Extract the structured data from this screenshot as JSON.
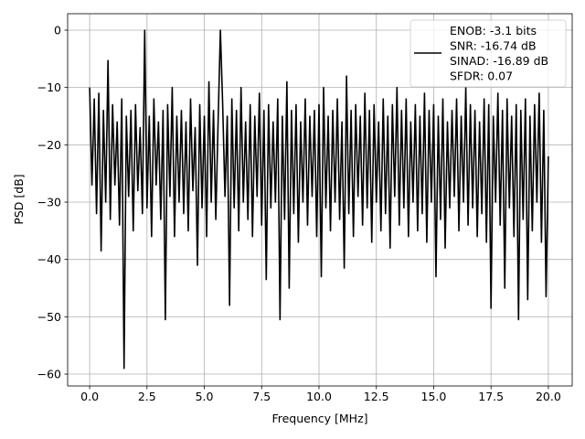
{
  "chart_data": {
    "type": "line",
    "title": "",
    "xlabel": "Frequency [MHz]",
    "ylabel": "PSD [dB]",
    "xlim": [
      -0.96,
      21.04
    ],
    "ylim": [
      -62.07,
      2.87
    ],
    "grid": true,
    "xticks": [
      0,
      2.5,
      5,
      7.5,
      10,
      12.5,
      15,
      17.5,
      20
    ],
    "xtick_labels": [
      "0.0",
      "2.5",
      "5.0",
      "7.5",
      "10.0",
      "12.5",
      "15.0",
      "17.5",
      "20.0"
    ],
    "yticks": [
      0,
      -10,
      -20,
      -30,
      -40,
      -50,
      -60
    ],
    "ytick_labels": [
      "0",
      "−10",
      "−20",
      "−30",
      "−40",
      "−50",
      "−60"
    ],
    "legend": {
      "placement": "top-right",
      "entries": [
        "ENOB: -3.1 bits",
        "SNR: -16.74 dB",
        "SINAD: -16.89 dB",
        "SFDR: 0.07"
      ]
    },
    "series": [
      {
        "name": "PSD",
        "color": "#000000",
        "x_start": 0,
        "x_step": 0.1,
        "y": [
          -10,
          -27,
          -12,
          -32,
          -11,
          -38.5,
          -14,
          -30,
          -5.3,
          -33,
          -13,
          -27,
          -16,
          -34,
          -12,
          -59,
          -15,
          -29,
          -14,
          -35,
          -13,
          -28,
          -17,
          -32,
          0,
          -31,
          -15,
          -36,
          -12,
          -27,
          -16,
          -33,
          -14,
          -50.5,
          -13,
          -29,
          -10,
          -36,
          -15,
          -30,
          -14,
          -32,
          -16,
          -35,
          -12,
          -28,
          -17,
          -41,
          -13,
          -31,
          -15,
          -36,
          -9,
          -30,
          -14,
          -33,
          -16,
          0,
          -13,
          -29,
          -15,
          -48,
          -12,
          -31,
          -14,
          -35,
          -10,
          -30,
          -16,
          -33,
          -13,
          -36,
          -15,
          -29,
          -11,
          -34,
          -14,
          -43.5,
          -13,
          -31,
          -16,
          -30,
          -12,
          -50.5,
          -15,
          -33,
          -9,
          -45,
          -14,
          -32,
          -13,
          -37,
          -16,
          -30,
          -12,
          -34,
          -15,
          -29,
          -14,
          -36,
          -13,
          -43,
          -10,
          -31,
          -15,
          -35,
          -14,
          -30,
          -12,
          -33,
          -16,
          -41.5,
          -8,
          -32,
          -14,
          -36,
          -13,
          -29,
          -15,
          -34,
          -11,
          -31,
          -14,
          -37,
          -13,
          -30,
          -16,
          -35,
          -12,
          -32,
          -15,
          -38,
          -13,
          -29,
          -10,
          -34,
          -14,
          -31,
          -12,
          -36,
          -16,
          -30,
          -13,
          -35,
          -15,
          -32,
          -11,
          -37,
          -14,
          -30,
          -13,
          -43,
          -15,
          -33,
          -12,
          -38,
          -16,
          -31,
          -14,
          -29,
          -12,
          -35,
          -15,
          -30,
          -10,
          -34,
          -13,
          -31,
          -14,
          -36,
          -16,
          -32,
          -12,
          -37,
          -13,
          -48.5,
          -15,
          -30,
          -11,
          -34,
          -14,
          -45,
          -12,
          -31,
          -15,
          -36,
          -13,
          -50.5,
          -14,
          -33,
          -12,
          -47,
          -15,
          -35,
          -13,
          -30,
          -11,
          -37,
          -14,
          -46.5,
          -22
        ]
      }
    ]
  }
}
